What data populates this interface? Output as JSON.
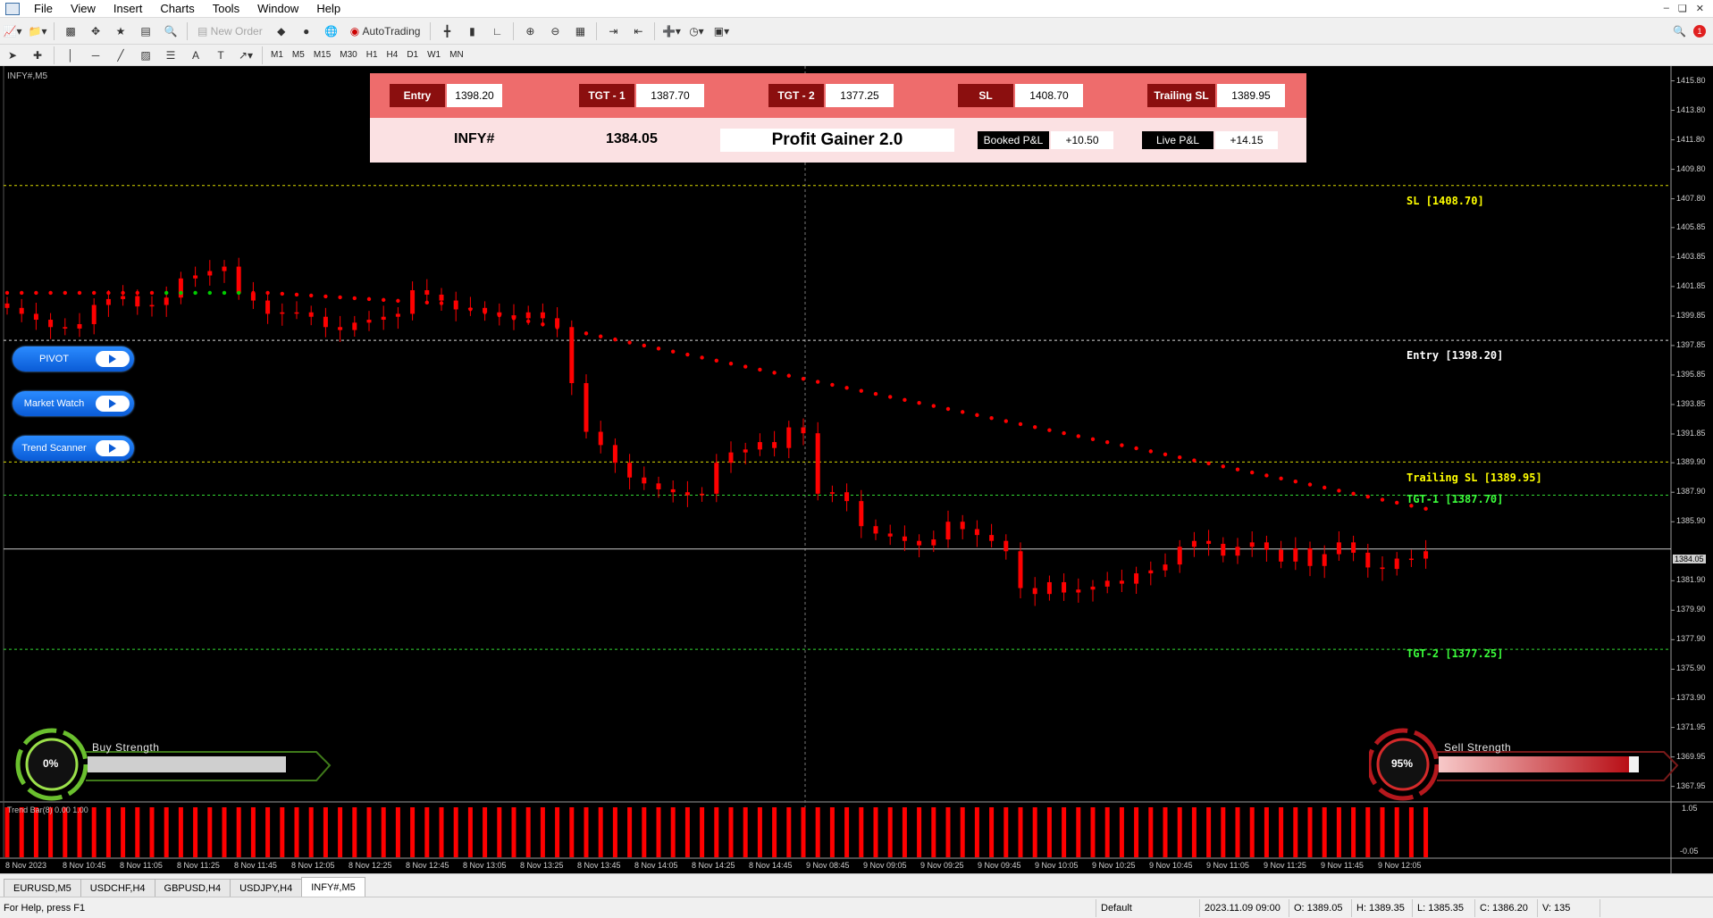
{
  "menu": {
    "items": [
      "File",
      "View",
      "Insert",
      "Charts",
      "Tools",
      "Window",
      "Help"
    ]
  },
  "toolbar": {
    "new_order": "New Order",
    "autotrading": "AutoTrading"
  },
  "timeframes": [
    "M1",
    "M5",
    "M15",
    "M30",
    "H1",
    "H4",
    "D1",
    "W1",
    "MN"
  ],
  "chart": {
    "symbol_label": "INFY#,M5"
  },
  "panel": {
    "entry_label": "Entry",
    "entry_value": "1398.20",
    "tgt1_label": "TGT - 1",
    "tgt1_value": "1387.70",
    "tgt2_label": "TGT - 2",
    "tgt2_value": "1377.25",
    "sl_label": "SL",
    "sl_value": "1408.70",
    "tsl_label": "Trailing SL",
    "tsl_value": "1389.95",
    "symbol": "INFY#",
    "price": "1384.05",
    "product": "Profit Gainer 2.0",
    "booked_label": "Booked P&L",
    "booked_value": "+10.50",
    "live_label": "Live P&L",
    "live_value": "+14.15"
  },
  "side_buttons": [
    "PIVOT",
    "Market Watch",
    "Trend Scanner"
  ],
  "levels": {
    "sl": "SL [1408.70]",
    "entry": "Entry [1398.20]",
    "tsl": "Trailing SL [1389.95]",
    "tgt1": "TGT-1 [1387.70]",
    "tgt2": "TGT-2 [1377.25]"
  },
  "colors": {
    "sl": "#ffff00",
    "entry": "#ffffff",
    "tsl": "#ffff00",
    "tgt1": "#3cff3c",
    "tgt2": "#3cff3c",
    "bear": "#ff0000",
    "bull_dot": "#00cc00"
  },
  "strength": {
    "buy_label": "Buy Strength",
    "buy_value": "0%",
    "buy_fill": 0,
    "sell_label": "Sell Strength",
    "sell_value": "95%",
    "sell_fill": 0.95
  },
  "price_axis": {
    "labels": [
      "1415.80",
      "1413.80",
      "1411.80",
      "1409.80",
      "1407.80",
      "1405.85",
      "1403.85",
      "1401.85",
      "1399.85",
      "1397.85",
      "1395.85",
      "1393.85",
      "1391.85",
      "1389.90",
      "1387.90",
      "1385.90",
      "1381.90",
      "1379.90",
      "1377.90",
      "1375.90",
      "1373.90",
      "1371.95",
      "1369.95",
      "1367.95"
    ],
    "current": "1384.05"
  },
  "indicator": {
    "label": "Trend Bar(8) 0.00 1.00",
    "scale_top": "1.05",
    "scale_bottom": "-0.05"
  },
  "time_axis": [
    "8 Nov 2023",
    "8 Nov 10:45",
    "8 Nov 11:05",
    "8 Nov 11:25",
    "8 Nov 11:45",
    "8 Nov 12:05",
    "8 Nov 12:25",
    "8 Nov 12:45",
    "8 Nov 13:05",
    "8 Nov 13:25",
    "8 Nov 13:45",
    "8 Nov 14:05",
    "8 Nov 14:25",
    "8 Nov 14:45",
    "9 Nov 08:45",
    "9 Nov 09:05",
    "9 Nov 09:25",
    "9 Nov 09:45",
    "9 Nov 10:05",
    "9 Nov 10:25",
    "9 Nov 10:45",
    "9 Nov 11:05",
    "9 Nov 11:25",
    "9 Nov 11:45",
    "9 Nov 12:05"
  ],
  "tabs": [
    "EURUSD,M5",
    "USDCHF,H4",
    "GBPUSD,H4",
    "USDJPY,H4",
    "INFY#,M5"
  ],
  "active_tab": "INFY#,M5",
  "status": {
    "help": "For Help, press F1",
    "profile": "Default",
    "time": "2023.11.09 09:00",
    "open": "O: 1389.05",
    "high": "H: 1389.35",
    "low": "L: 1385.35",
    "close": "C: 1386.20",
    "volume": "V: 135"
  },
  "chart_data": {
    "type": "candlestick",
    "symbol": "INFY#",
    "timeframe": "M5",
    "ylim": [
      1366.9,
      1416.8
    ],
    "levels": {
      "sl": 1408.7,
      "entry": 1398.2,
      "trailing_sl": 1389.95,
      "tgt1": 1387.7,
      "tgt2": 1377.25,
      "current": 1384.05
    },
    "close_series": [
      1400.4,
      1400.0,
      1399.6,
      1399.1,
      1399.0,
      1399.3,
      1400.6,
      1401.0,
      1401.2,
      1400.5,
      1400.6,
      1401.1,
      1402.4,
      1402.6,
      1402.9,
      1403.2,
      1401.4,
      1400.9,
      1400.0,
      1400.1,
      1400.1,
      1399.8,
      1399.1,
      1398.9,
      1399.4,
      1399.6,
      1399.8,
      1400.0,
      1401.6,
      1401.3,
      1400.9,
      1400.3,
      1400.4,
      1400.1,
      1399.9,
      1399.7,
      1400.1,
      1399.7,
      1399.1,
      1395.3,
      1392.0,
      1391.1,
      1389.9,
      1388.9,
      1388.5,
      1388.1,
      1387.9,
      1387.7,
      1387.8,
      1389.9,
      1390.6,
      1390.8,
      1391.3,
      1390.9,
      1392.3,
      1391.9,
      1387.8,
      1387.9,
      1387.3,
      1385.6,
      1385.1,
      1384.9,
      1384.6,
      1384.3,
      1384.7,
      1385.9,
      1385.4,
      1385.0,
      1384.6,
      1383.9,
      1381.4,
      1381.0,
      1381.8,
      1381.1,
      1381.3,
      1381.5,
      1381.9,
      1381.7,
      1382.4,
      1382.6,
      1383.0,
      1384.2,
      1384.6,
      1384.4,
      1383.6,
      1384.2,
      1384.5,
      1384.0,
      1383.2,
      1384.1,
      1382.9,
      1383.7,
      1384.5,
      1383.8,
      1382.8,
      1382.7,
      1383.4,
      1383.4,
      1383.9
    ]
  }
}
